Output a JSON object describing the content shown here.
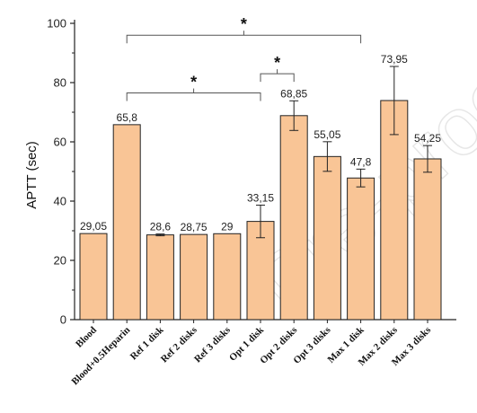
{
  "colors": {
    "bar_fill": "#f9c596",
    "bar_stroke": "#222222",
    "axis": "#222222",
    "watermark": "#e6e6e6"
  },
  "watermark_text": "Pre-proof",
  "chart_data": {
    "type": "bar",
    "title": "",
    "xlabel": "",
    "ylabel": "APTT (sec)",
    "ylim": [
      0,
      100
    ],
    "yticks": [
      0,
      20,
      40,
      60,
      80,
      100
    ],
    "categories": [
      "Blood",
      "Blood+0.5Heparin",
      "Ref 1 disk",
      "Ref 2 disks",
      "Ref 3 disks",
      "Opt 1 disk",
      "Opt 2 disks",
      "Opt 3 disks",
      "Max 1 disk",
      "Max 2 disks",
      "Max 3 disks"
    ],
    "values": [
      29.05,
      65.8,
      28.6,
      28.75,
      29,
      33.15,
      68.85,
      55.05,
      47.8,
      73.95,
      54.25
    ],
    "value_labels": [
      "29,05",
      "65,8",
      "28,6",
      "28,75",
      "29",
      "33,15",
      "68,85",
      "55,05",
      "47,8",
      "73,95",
      "54,25"
    ],
    "errors": [
      0,
      0,
      0.3,
      0,
      0,
      5.5,
      5,
      5,
      3,
      11.5,
      4.5
    ],
    "significance": [
      {
        "from": 1,
        "to": 8,
        "y": 96,
        "label": "*"
      },
      {
        "from": 1,
        "to": 5,
        "y": 76.5,
        "label": "*"
      },
      {
        "from": 5,
        "to": 6,
        "y": 83,
        "label": "*"
      }
    ],
    "grid": false,
    "legend": "none"
  }
}
